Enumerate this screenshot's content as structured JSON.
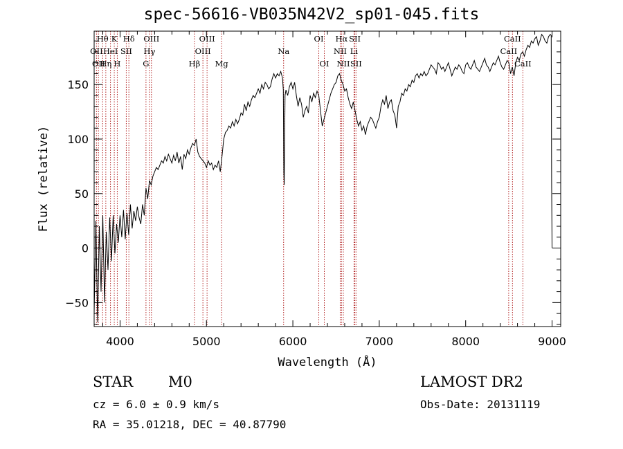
{
  "chart_data": {
    "type": "line",
    "title": "spec-56616-VB035N42V2_sp01-045.fits",
    "xlabel": "Wavelength (Å)",
    "ylabel": "Flux (relative)",
    "xlim": [
      3700,
      9100
    ],
    "ylim": [
      -72,
      199
    ],
    "x_ticks": [
      4000,
      5000,
      6000,
      7000,
      8000,
      9000
    ],
    "y_ticks": [
      -50,
      0,
      50,
      100,
      150
    ],
    "grid": false,
    "line_color": "#000000",
    "marker_color": "#b22222",
    "series": [
      {
        "x": [
          3700,
          3720,
          3740,
          3760,
          3780,
          3800,
          3820,
          3840,
          3860,
          3880,
          3900,
          3920,
          3940,
          3960,
          3980,
          4000,
          4020,
          4040,
          4060,
          4080,
          4100,
          4120,
          4140,
          4160,
          4180,
          4200,
          4220,
          4240,
          4260,
          4280,
          4300,
          4320,
          4340,
          4360,
          4380,
          4400,
          4420,
          4440,
          4460,
          4480,
          4500,
          4520,
          4540,
          4560,
          4580,
          4600,
          4620,
          4640,
          4660,
          4680,
          4700,
          4720,
          4740,
          4760,
          4780,
          4800,
          4820,
          4840,
          4860,
          4880,
          4900,
          4920,
          4940,
          4960,
          4980,
          5000,
          5020,
          5040,
          5060,
          5080,
          5100,
          5120,
          5140,
          5160,
          5180,
          5200,
          5220,
          5240,
          5260,
          5280,
          5300,
          5320,
          5340,
          5360,
          5380,
          5400,
          5420,
          5440,
          5460,
          5480,
          5500,
          5520,
          5540,
          5560,
          5580,
          5600,
          5620,
          5640,
          5660,
          5680,
          5700,
          5720,
          5740,
          5760,
          5780,
          5800,
          5820,
          5840,
          5860,
          5880,
          5890,
          5895,
          5900,
          5910,
          5920,
          5940,
          5960,
          5980,
          6000,
          6020,
          6040,
          6060,
          6080,
          6100,
          6120,
          6140,
          6160,
          6180,
          6200,
          6220,
          6240,
          6260,
          6280,
          6300,
          6320,
          6340,
          6360,
          6380,
          6400,
          6420,
          6440,
          6460,
          6480,
          6500,
          6520,
          6540,
          6560,
          6580,
          6600,
          6620,
          6640,
          6660,
          6680,
          6700,
          6720,
          6740,
          6760,
          6780,
          6800,
          6820,
          6840,
          6860,
          6880,
          6900,
          6920,
          6940,
          6960,
          6980,
          7000,
          7020,
          7040,
          7060,
          7080,
          7100,
          7120,
          7140,
          7160,
          7180,
          7200,
          7220,
          7240,
          7260,
          7280,
          7300,
          7320,
          7340,
          7360,
          7380,
          7400,
          7420,
          7440,
          7460,
          7480,
          7500,
          7520,
          7540,
          7560,
          7580,
          7600,
          7620,
          7640,
          7660,
          7680,
          7700,
          7720,
          7740,
          7760,
          7780,
          7800,
          7820,
          7840,
          7860,
          7880,
          7900,
          7920,
          7940,
          7960,
          7980,
          8000,
          8020,
          8040,
          8060,
          8080,
          8100,
          8120,
          8140,
          8160,
          8180,
          8200,
          8220,
          8240,
          8260,
          8280,
          8300,
          8320,
          8340,
          8360,
          8380,
          8400,
          8420,
          8440,
          8460,
          8480,
          8500,
          8520,
          8540,
          8560,
          8580,
          8600,
          8620,
          8640,
          8660,
          8680,
          8700,
          8720,
          8740,
          8760,
          8780,
          8800,
          8820,
          8840,
          8860,
          8880,
          8900,
          8920,
          8940,
          8960,
          8980,
          8990,
          8995,
          9000
        ],
        "y": [
          -60,
          25,
          -68,
          20,
          -40,
          30,
          -50,
          15,
          -20,
          28,
          -12,
          30,
          -5,
          22,
          5,
          30,
          10,
          35,
          8,
          32,
          12,
          40,
          18,
          34,
          25,
          38,
          28,
          22,
          40,
          30,
          55,
          45,
          62,
          58,
          66,
          70,
          74,
          72,
          76,
          80,
          78,
          84,
          80,
          86,
          82,
          78,
          85,
          80,
          88,
          78,
          84,
          72,
          86,
          82,
          90,
          86,
          92,
          96,
          94,
          100,
          88,
          84,
          82,
          80,
          78,
          74,
          80,
          76,
          78,
          72,
          76,
          74,
          80,
          70,
          84,
          100,
          106,
          108,
          112,
          110,
          116,
          112,
          118,
          114,
          118,
          124,
          122,
          132,
          126,
          134,
          130,
          136,
          140,
          138,
          142,
          146,
          142,
          150,
          146,
          152,
          150,
          146,
          148,
          155,
          160,
          156,
          160,
          158,
          162,
          156,
          145,
          70,
          58,
          140,
          145,
          140,
          148,
          152,
          146,
          152,
          140,
          130,
          138,
          132,
          120,
          126,
          130,
          124,
          140,
          134,
          142,
          138,
          144,
          140,
          126,
          112,
          118,
          124,
          130,
          136,
          142,
          146,
          150,
          152,
          158,
          160,
          154,
          150,
          144,
          146,
          138,
          132,
          128,
          134,
          126,
          118,
          112,
          116,
          108,
          112,
          104,
          112,
          116,
          120,
          118,
          114,
          110,
          116,
          120,
          130,
          136,
          132,
          140,
          128,
          134,
          136,
          126,
          122,
          110,
          130,
          134,
          142,
          140,
          146,
          144,
          150,
          148,
          154,
          152,
          158,
          160,
          156,
          160,
          158,
          162,
          158,
          160,
          164,
          168,
          166,
          164,
          160,
          170,
          168,
          164,
          166,
          162,
          166,
          170,
          164,
          158,
          162,
          166,
          164,
          168,
          166,
          162,
          160,
          168,
          170,
          166,
          164,
          168,
          172,
          166,
          164,
          162,
          166,
          170,
          174,
          168,
          166,
          162,
          166,
          170,
          168,
          172,
          176,
          170,
          166,
          164,
          168,
          172,
          170,
          160,
          166,
          158,
          170,
          175,
          172,
          178,
          180,
          176,
          182,
          186,
          184,
          190,
          188,
          192,
          194,
          186,
          190,
          196,
          194,
          190,
          188,
          194,
          196,
          195,
          60,
          0
        ]
      }
    ],
    "lines": [
      {
        "wavelength": 3727,
        "label": "OII",
        "row": 1
      },
      {
        "wavelength": 3750,
        "label": "OII",
        "row": 2
      },
      {
        "wavelength": 3798,
        "label": "Hθ",
        "row": 0
      },
      {
        "wavelength": 3835,
        "label": "Hη",
        "row": 2
      },
      {
        "wavelength": 3889,
        "label": "HeI",
        "row": 1
      },
      {
        "wavelength": 3933,
        "label": "K",
        "row": 0
      },
      {
        "wavelength": 3968,
        "label": "H",
        "row": 2
      },
      {
        "wavelength": 4072,
        "label": "SII",
        "row": 1
      },
      {
        "wavelength": 4102,
        "label": "Hδ",
        "row": 0
      },
      {
        "wavelength": 4300,
        "label": "G",
        "row": 2
      },
      {
        "wavelength": 4340,
        "label": "Hγ",
        "row": 1
      },
      {
        "wavelength": 4363,
        "label": "OIII",
        "row": 0
      },
      {
        "wavelength": 4861,
        "label": "Hβ",
        "row": 2
      },
      {
        "wavelength": 4959,
        "label": "OIII",
        "row": 1
      },
      {
        "wavelength": 5007,
        "label": "OIII",
        "row": 0
      },
      {
        "wavelength": 5175,
        "label": "Mg",
        "row": 2
      },
      {
        "wavelength": 5893,
        "label": "Na",
        "row": 1
      },
      {
        "wavelength": 6300,
        "label": "OI",
        "row": 0
      },
      {
        "wavelength": 6364,
        "label": "OI",
        "row": 2
      },
      {
        "wavelength": 6548,
        "label": "NII",
        "row": 1
      },
      {
        "wavelength": 6563,
        "label": "Hα",
        "row": 0
      },
      {
        "wavelength": 6584,
        "label": "NII",
        "row": 2
      },
      {
        "wavelength": 6708,
        "label": "Li",
        "row": 1
      },
      {
        "wavelength": 6717,
        "label": "SII",
        "row": 0
      },
      {
        "wavelength": 6731,
        "label": "SII",
        "row": 2
      },
      {
        "wavelength": 8498,
        "label": "CaII",
        "row": 1
      },
      {
        "wavelength": 8542,
        "label": "CaII",
        "row": 0
      },
      {
        "wavelength": 8662,
        "label": "CaII",
        "row": 2
      }
    ]
  },
  "info": {
    "object_class": "STAR",
    "subclass": "M0",
    "redshift": "cz =  6.0 ± 0.9 km/s",
    "coords": "RA =  35.01218, DEC =  40.87790",
    "survey": "LAMOST DR2",
    "obs_date": "Obs-Date: 20131119"
  }
}
